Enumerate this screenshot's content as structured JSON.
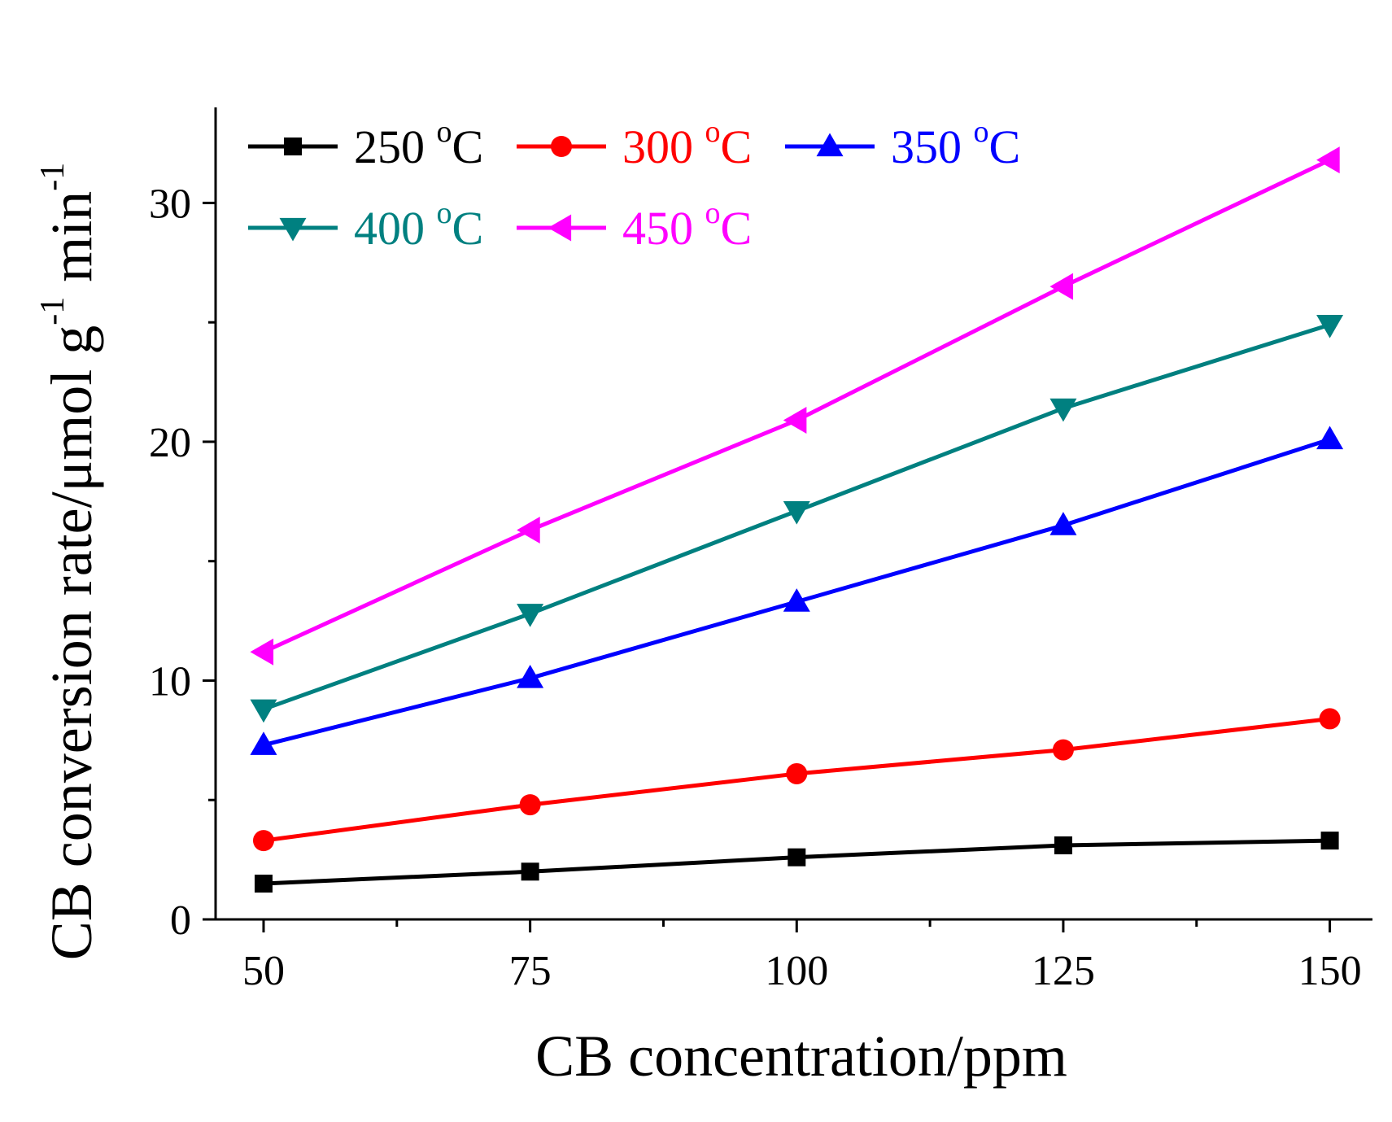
{
  "chart_data": {
    "type": "line",
    "title": "",
    "xlabel": "CB concentration/ppm",
    "ylabel": {
      "text": "CB conversion rate/μmol g",
      "sup1": "-1",
      "mid": " min",
      "sup2": "-1"
    },
    "x": [
      50,
      75,
      100,
      125,
      150
    ],
    "xlim": [
      45.5,
      154
    ],
    "ylim": [
      0,
      34
    ],
    "x_ticks": [
      50,
      75,
      100,
      125,
      150
    ],
    "y_ticks": [
      0,
      10,
      20,
      30
    ],
    "grid": false,
    "legend_position": "top-left",
    "series": [
      {
        "name": "250",
        "unit": "°C",
        "unit_sup": "o",
        "unit_base": "C",
        "color": "#000000",
        "marker": "square",
        "values": [
          1.5,
          2.0,
          2.6,
          3.1,
          3.3
        ]
      },
      {
        "name": "300",
        "unit": "°C",
        "unit_sup": "o",
        "unit_base": "C",
        "color": "#ff0000",
        "marker": "circle",
        "values": [
          3.3,
          4.8,
          6.1,
          7.1,
          8.4
        ]
      },
      {
        "name": "350",
        "unit": "°C",
        "unit_sup": "o",
        "unit_base": "C",
        "color": "#0000ff",
        "marker": "triangle-up",
        "values": [
          7.3,
          10.1,
          13.3,
          16.5,
          20.1
        ]
      },
      {
        "name": "400",
        "unit": "°C",
        "unit_sup": "o",
        "unit_base": "C",
        "color": "#008080",
        "marker": "triangle-down",
        "values": [
          8.8,
          12.8,
          17.1,
          21.4,
          24.9
        ]
      },
      {
        "name": "450",
        "unit": "°C",
        "unit_sup": "o",
        "unit_base": "C",
        "color": "#ff00ff",
        "marker": "triangle-left",
        "values": [
          11.2,
          16.3,
          20.9,
          26.5,
          31.8
        ]
      }
    ]
  }
}
